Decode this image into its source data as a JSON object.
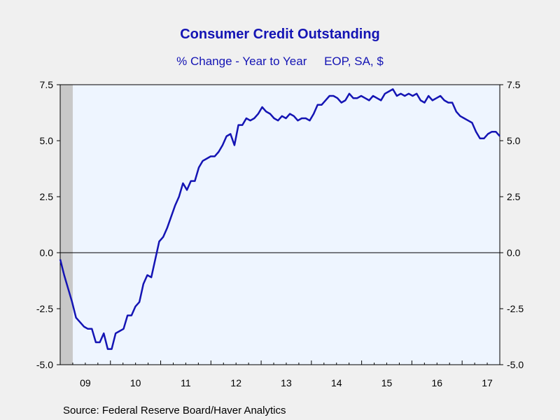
{
  "chart_data": {
    "type": "line",
    "title": "Consumer Credit Outstanding",
    "subtitle_parts": [
      "% Change - Year to Year",
      "EOP, SA, $"
    ],
    "source": "Source:  Federal Reserve Board/Haver Analytics",
    "ylim": [
      -5.0,
      7.5
    ],
    "yticks": [
      "7.5",
      "5.0",
      "2.5",
      "0.0",
      "-2.5",
      "-5.0"
    ],
    "ytick_values": [
      7.5,
      5.0,
      2.5,
      0.0,
      -2.5,
      -5.0
    ],
    "xticks": [
      "09",
      "10",
      "11",
      "12",
      "13",
      "14",
      "15",
      "16",
      "17"
    ],
    "xtick_years": [
      2009,
      2010,
      2011,
      2012,
      2013,
      2014,
      2015,
      2016,
      2017
    ],
    "x_start_year": 2009,
    "x_end_year": 2017.75,
    "recession_shading": [
      2009,
      2009.25
    ],
    "colors": {
      "line": "#1414b4",
      "plot_bg": "#eef5ff",
      "shade": "#c8c8c8",
      "title": "#1414b4"
    },
    "series": [
      {
        "values": [
          -0.3,
          -1.0,
          -1.6,
          -2.2,
          -2.9,
          -3.1,
          -3.3,
          -3.4,
          -3.4,
          -4.0,
          -4.0,
          -3.6,
          -4.3,
          -4.3,
          -3.6,
          -3.5,
          -3.4,
          -2.8,
          -2.8,
          -2.4,
          -2.2,
          -1.4,
          -1.0,
          -1.1,
          -0.3,
          0.5,
          0.7,
          1.1,
          1.6,
          2.1,
          2.5,
          3.1,
          2.8,
          3.2,
          3.2,
          3.8,
          4.1,
          4.2,
          4.3,
          4.3,
          4.5,
          4.8,
          5.2,
          5.3,
          4.8,
          5.7,
          5.7,
          6.0,
          5.9,
          6.0,
          6.2,
          6.5,
          6.3,
          6.2,
          6.0,
          5.9,
          6.1,
          6.0,
          6.2,
          6.1,
          5.9,
          6.0,
          6.0,
          5.9,
          6.2,
          6.6,
          6.6,
          6.8,
          7.0,
          7.0,
          6.9,
          6.7,
          6.8,
          7.1,
          6.9,
          6.9,
          7.0,
          6.9,
          6.8,
          7.0,
          6.9,
          6.8,
          7.1,
          7.2,
          7.3,
          7.0,
          7.1,
          7.0,
          7.1,
          7.0,
          7.1,
          6.8,
          6.7,
          7.0,
          6.8,
          6.9,
          7.0,
          6.8,
          6.7,
          6.7,
          6.3,
          6.1,
          6.0,
          5.9,
          5.8,
          5.4,
          5.1,
          5.1,
          5.3,
          5.4,
          5.4,
          5.2
        ]
      }
    ]
  }
}
